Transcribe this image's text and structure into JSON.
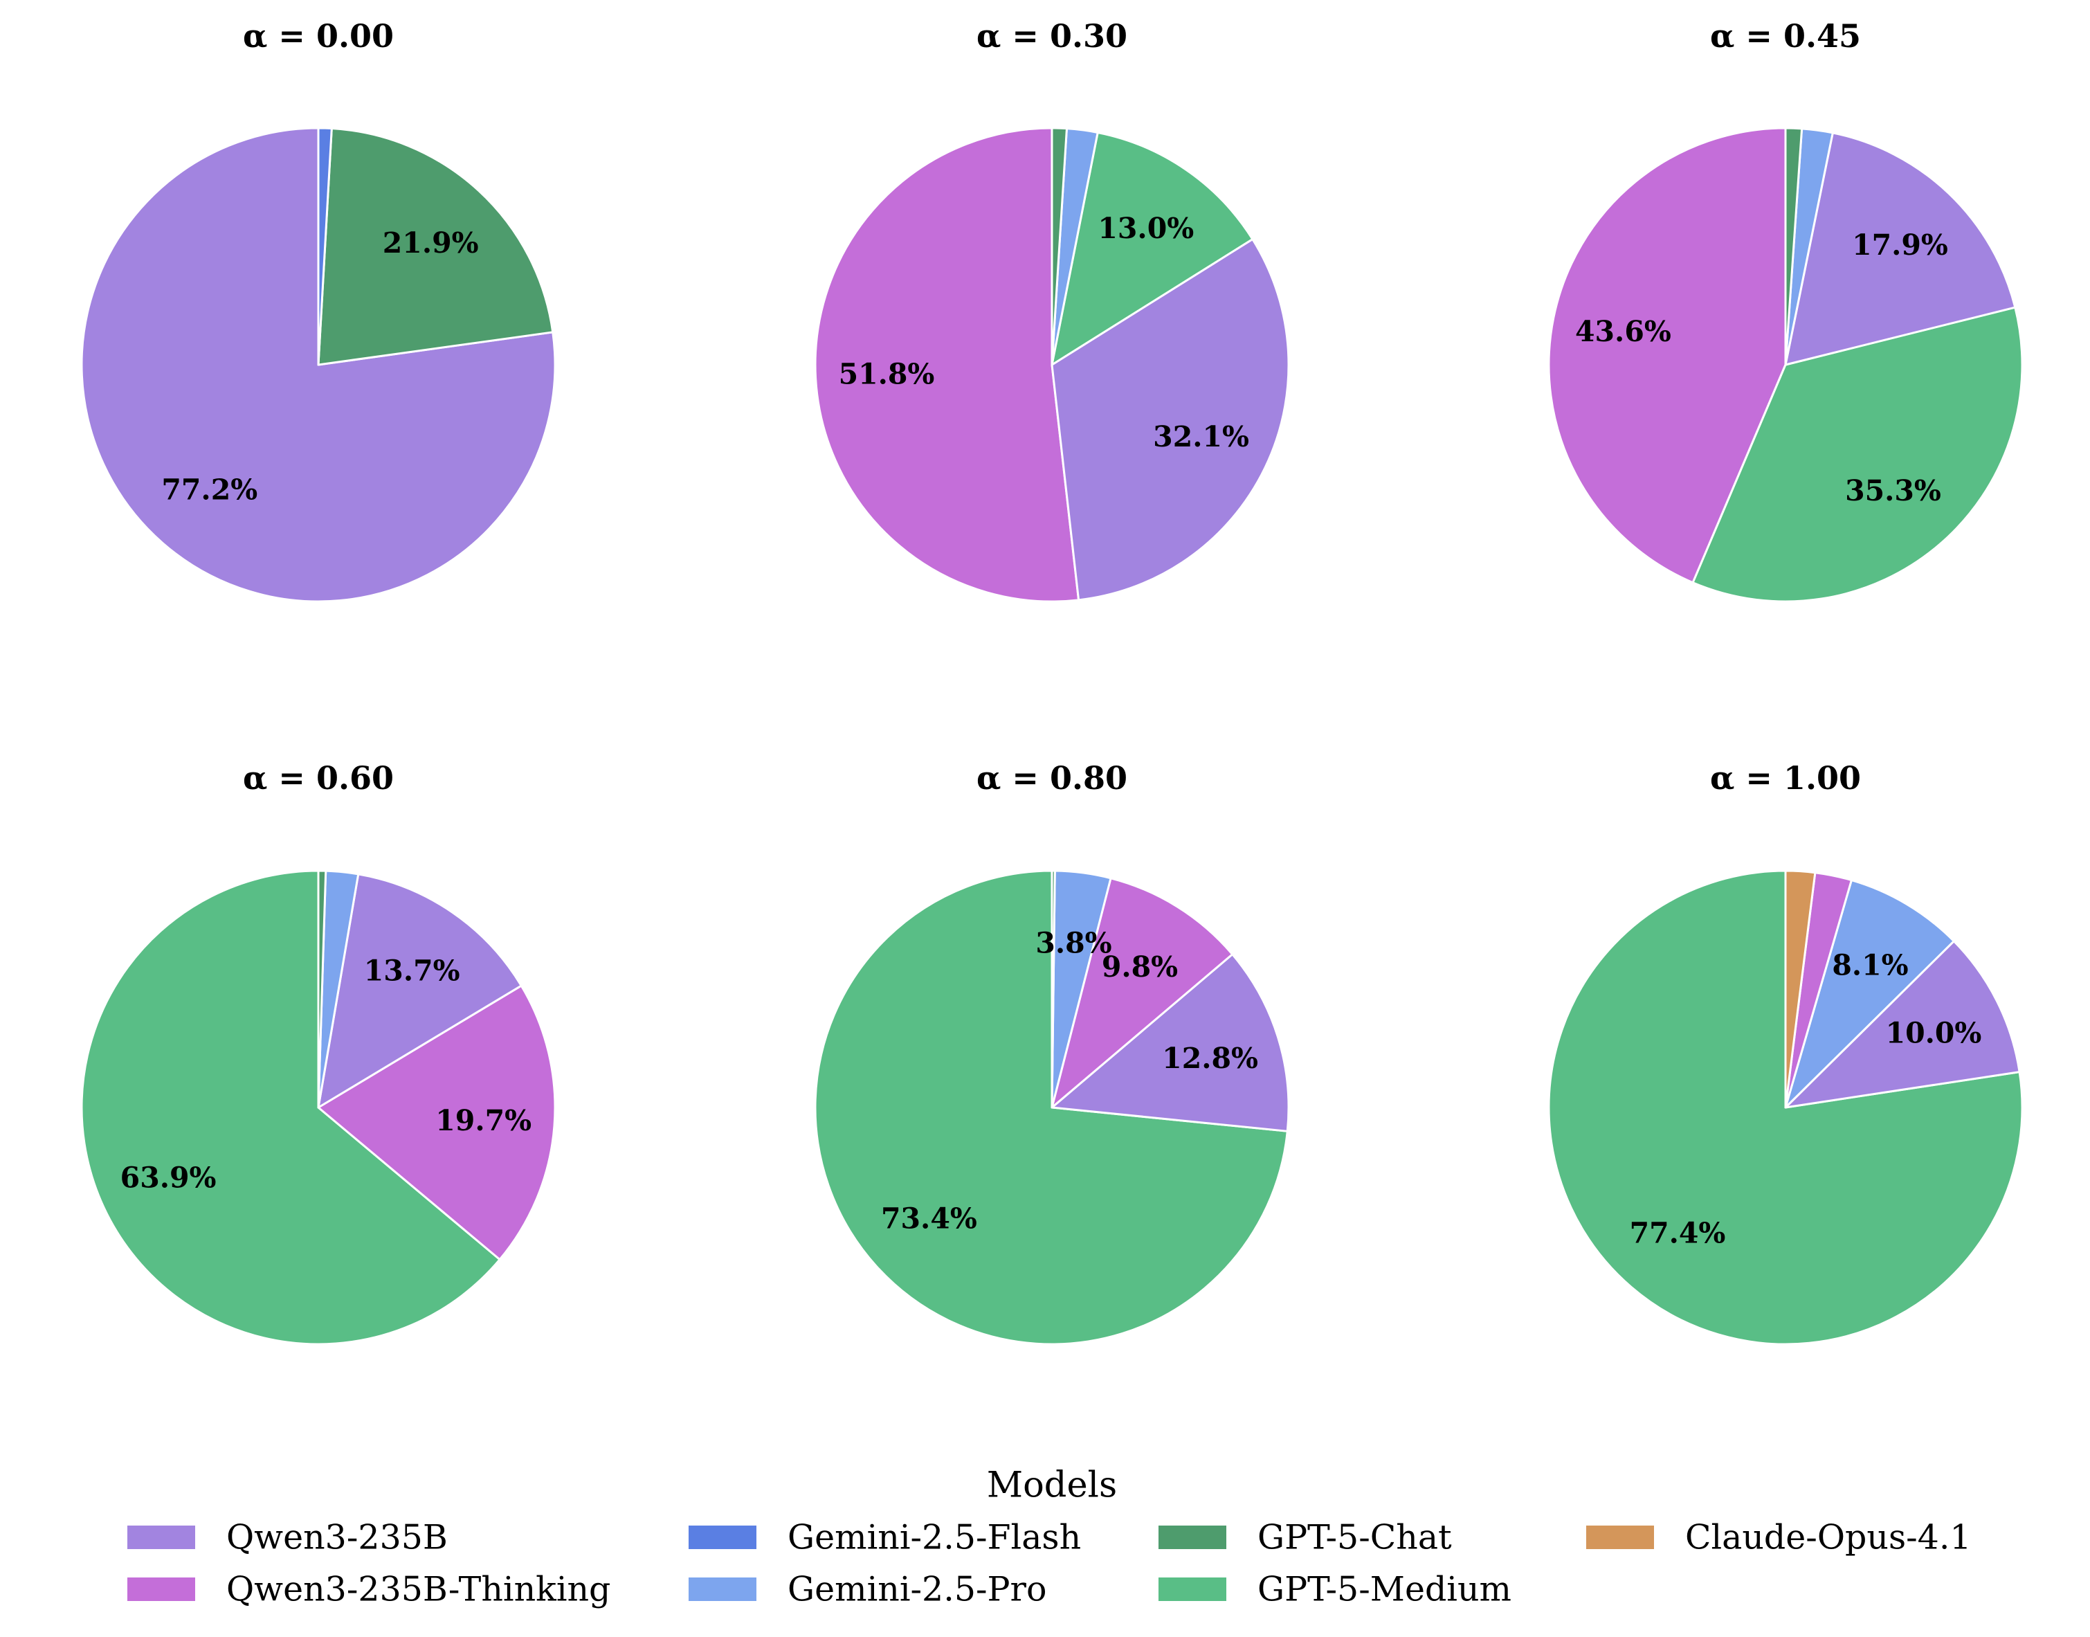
{
  "chart_data": {
    "type": "pie",
    "legend": {
      "title": "Models",
      "placement": "bottom-center",
      "entries": [
        {
          "name": "Qwen3-235B",
          "color": "#a284e0"
        },
        {
          "name": "Qwen3-235B-Thinking",
          "color": "#c46ed9"
        },
        {
          "name": "Gemini-2.5-Flash",
          "color": "#5a7fe3"
        },
        {
          "name": "Gemini-2.5-Pro",
          "color": "#7da5ee"
        },
        {
          "name": "GPT-5-Chat",
          "color": "#4e9c6d"
        },
        {
          "name": "GPT-5-Medium",
          "color": "#59be86"
        },
        {
          "name": "Claude-Opus-4.1",
          "color": "#d4965a"
        }
      ]
    },
    "panels": [
      {
        "title": "α = 0.00",
        "slices": [
          {
            "model": "Qwen3-235B",
            "value": 77.2,
            "label": "77.2%"
          },
          {
            "model": "Qwen3-235B-Thinking",
            "value": 0.0,
            "label": ""
          },
          {
            "model": "GPT-5-Chat",
            "value": 21.9,
            "label": "21.9%"
          },
          {
            "model": "Gemini-2.5-Flash",
            "value": 0.9,
            "label": ""
          }
        ]
      },
      {
        "title": "α = 0.30",
        "slices": [
          {
            "model": "Qwen3-235B-Thinking",
            "value": 51.8,
            "label": "51.8%"
          },
          {
            "model": "Qwen3-235B",
            "value": 32.1,
            "label": "32.1%"
          },
          {
            "model": "GPT-5-Medium",
            "value": 13.0,
            "label": "13.0%"
          },
          {
            "model": "Gemini-2.5-Pro",
            "value": 2.1,
            "label": ""
          },
          {
            "model": "GPT-5-Chat",
            "value": 1.0,
            "label": ""
          }
        ]
      },
      {
        "title": "α = 0.45",
        "slices": [
          {
            "model": "Qwen3-235B-Thinking",
            "value": 43.6,
            "label": "43.6%"
          },
          {
            "model": "GPT-5-Medium",
            "value": 35.3,
            "label": "35.3%"
          },
          {
            "model": "Qwen3-235B",
            "value": 17.9,
            "label": "17.9%"
          },
          {
            "model": "Gemini-2.5-Pro",
            "value": 2.1,
            "label": ""
          },
          {
            "model": "GPT-5-Chat",
            "value": 1.1,
            "label": ""
          }
        ]
      },
      {
        "title": "α = 0.60",
        "slices": [
          {
            "model": "GPT-5-Medium",
            "value": 63.9,
            "label": "63.9%"
          },
          {
            "model": "Qwen3-235B-Thinking",
            "value": 19.7,
            "label": "19.7%"
          },
          {
            "model": "Qwen3-235B",
            "value": 13.7,
            "label": "13.7%"
          },
          {
            "model": "Gemini-2.5-Pro",
            "value": 2.2,
            "label": ""
          },
          {
            "model": "GPT-5-Chat",
            "value": 0.5,
            "label": ""
          }
        ]
      },
      {
        "title": "α = 0.80",
        "slices": [
          {
            "model": "GPT-5-Medium",
            "value": 73.4,
            "label": "73.4%"
          },
          {
            "model": "Qwen3-235B",
            "value": 12.8,
            "label": "12.8%"
          },
          {
            "model": "Qwen3-235B-Thinking",
            "value": 9.8,
            "label": "9.8%"
          },
          {
            "model": "Gemini-2.5-Pro",
            "value": 3.8,
            "label": "3.8%"
          },
          {
            "model": "GPT-5-Chat",
            "value": 0.2,
            "label": ""
          }
        ]
      },
      {
        "title": "α = 1.00",
        "slices": [
          {
            "model": "GPT-5-Medium",
            "value": 77.4,
            "label": "77.4%"
          },
          {
            "model": "Qwen3-235B",
            "value": 10.0,
            "label": "10.0%"
          },
          {
            "model": "Gemini-2.5-Pro",
            "value": 8.1,
            "label": "8.1%"
          },
          {
            "model": "Qwen3-235B-Thinking",
            "value": 2.5,
            "label": ""
          },
          {
            "model": "Claude-Opus-4.1",
            "value": 2.0,
            "label": ""
          }
        ]
      }
    ]
  }
}
